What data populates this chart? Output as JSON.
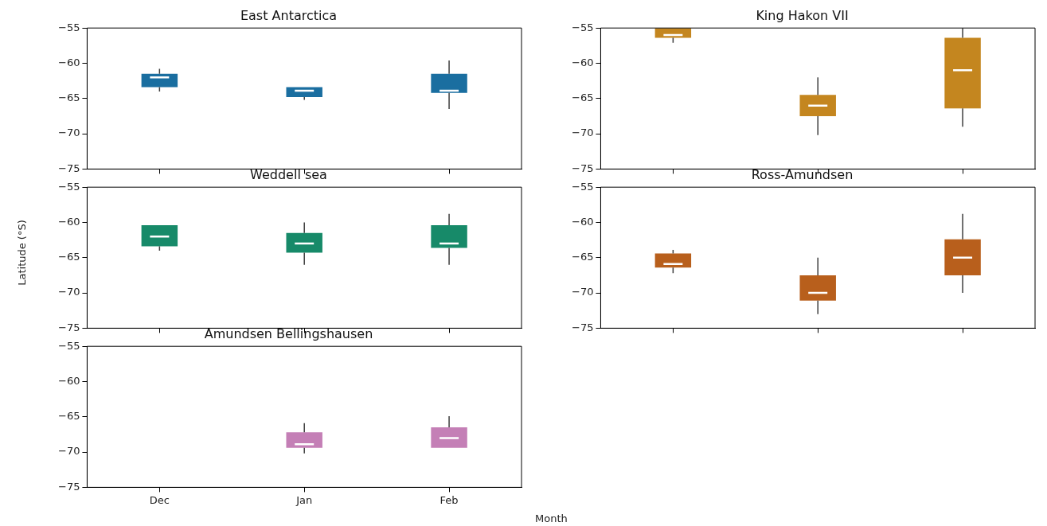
{
  "chart_data": [
    {
      "type": "box",
      "title": "East Antarctica",
      "categories": [
        null,
        null,
        null
      ],
      "ylim": [
        -75,
        -55
      ],
      "yticks": [
        -75,
        -70,
        -65,
        -60,
        -55
      ],
      "tick_labels": "y",
      "grid": false,
      "series": [
        {
          "color": "#1a6ea0",
          "boxes": [
            {
              "low": -64,
              "q1": -63.4,
              "median": -62,
              "q3": -61.5,
              "high": -60.8
            },
            {
              "low": -65.2,
              "q1": -64.8,
              "median": -63.9,
              "q3": -63.4,
              "high": -63.4
            },
            {
              "low": -66.5,
              "q1": -64.2,
              "median": -63.9,
              "q3": -61.5,
              "high": -59.6
            }
          ]
        }
      ]
    },
    {
      "type": "box",
      "title": "King Hakon VII",
      "categories": [
        null,
        null,
        null
      ],
      "ylim": [
        -75,
        -55
      ],
      "yticks": [
        -75,
        -70,
        -65,
        -60,
        -55
      ],
      "tick_labels": "y",
      "grid": false,
      "series": [
        {
          "color": "#c4861f",
          "boxes": [
            {
              "low": -57.1,
              "q1": -56.4,
              "median": -56,
              "q3": -55,
              "high": -55
            },
            {
              "low": -70.2,
              "q1": -67.5,
              "median": -66,
              "q3": -64.5,
              "high": -62
            },
            {
              "low": -69,
              "q1": -66.4,
              "median": -61,
              "q3": -56.4,
              "high": -55
            }
          ]
        }
      ]
    },
    {
      "type": "box",
      "title": "Weddell sea",
      "categories": [
        null,
        null,
        null
      ],
      "ylim": [
        -75,
        -55
      ],
      "yticks": [
        -75,
        -70,
        -65,
        -60,
        -55
      ],
      "tick_labels": "y",
      "grid": false,
      "series": [
        {
          "color": "#178a69",
          "boxes": [
            {
              "low": -64,
              "q1": -63.4,
              "median": -62,
              "q3": -60.4,
              "high": -60.4
            },
            {
              "low": -66,
              "q1": -64.3,
              "median": -63,
              "q3": -61.5,
              "high": -60
            },
            {
              "low": -66,
              "q1": -63.6,
              "median": -63,
              "q3": -60.4,
              "high": -58.8
            }
          ]
        }
      ]
    },
    {
      "type": "box",
      "title": "Ross-Amundsen",
      "categories": [
        null,
        null,
        null
      ],
      "ylim": [
        -75,
        -55
      ],
      "yticks": [
        -75,
        -70,
        -65,
        -60,
        -55
      ],
      "tick_labels": "y",
      "grid": false,
      "series": [
        {
          "color": "#b85f1c",
          "boxes": [
            {
              "low": -67.2,
              "q1": -66.4,
              "median": -65.9,
              "q3": -64.4,
              "high": -63.9
            },
            {
              "low": -73,
              "q1": -71.1,
              "median": -70,
              "q3": -67.5,
              "high": -65
            },
            {
              "low": -70,
              "q1": -67.5,
              "median": -65,
              "q3": -62.4,
              "high": -58.8
            }
          ]
        }
      ]
    },
    {
      "type": "box",
      "title": "Amundsen Bellingshausen",
      "xlabel": "Month",
      "ylabel": "Latitude (°S)",
      "categories": [
        "Dec",
        "Jan",
        "Feb"
      ],
      "ylim": [
        -75,
        -55
      ],
      "yticks": [
        -75,
        -70,
        -65,
        -60,
        -55
      ],
      "grid": false,
      "series": [
        {
          "color": "#c47fb6",
          "boxes": [
            null,
            {
              "low": -70.2,
              "q1": -69.4,
              "median": -68.9,
              "q3": -67.2,
              "high": -65.9
            },
            {
              "low": -69.4,
              "q1": -69.4,
              "median": -68,
              "q3": -66.5,
              "high": -64.9
            }
          ]
        }
      ]
    }
  ]
}
